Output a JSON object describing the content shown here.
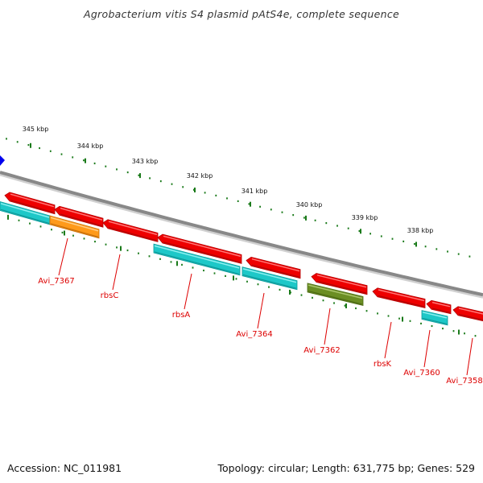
{
  "title": "Agrobacterium vitis S4 plasmid pAtS4e, complete sequence",
  "accession": "Accession: NC_011981",
  "summary": "Topology: circular; Length: 631,775 bp; Genes: 529",
  "colors": {
    "backbone": "#8a8a8a",
    "tick": "#1a7a1a",
    "label": "#dd0000",
    "gene_red": "#ee0000",
    "gene_cyan": "#1ec8c8",
    "gene_orange": "#ff9a1a",
    "gene_olive": "#6b8e23",
    "marker": "#0000ee"
  },
  "scale_labels": [
    "345 kbp",
    "344 kbp",
    "343 kbp",
    "342 kbp",
    "341 kbp",
    "340 kbp",
    "339 kbp",
    "338 kbp"
  ],
  "gene_labels": [
    "Avi_7367",
    "rbsC",
    "rbsA",
    "Avi_7364",
    "Avi_7362",
    "rbsK",
    "Avi_7360",
    "Avi_7358"
  ]
}
